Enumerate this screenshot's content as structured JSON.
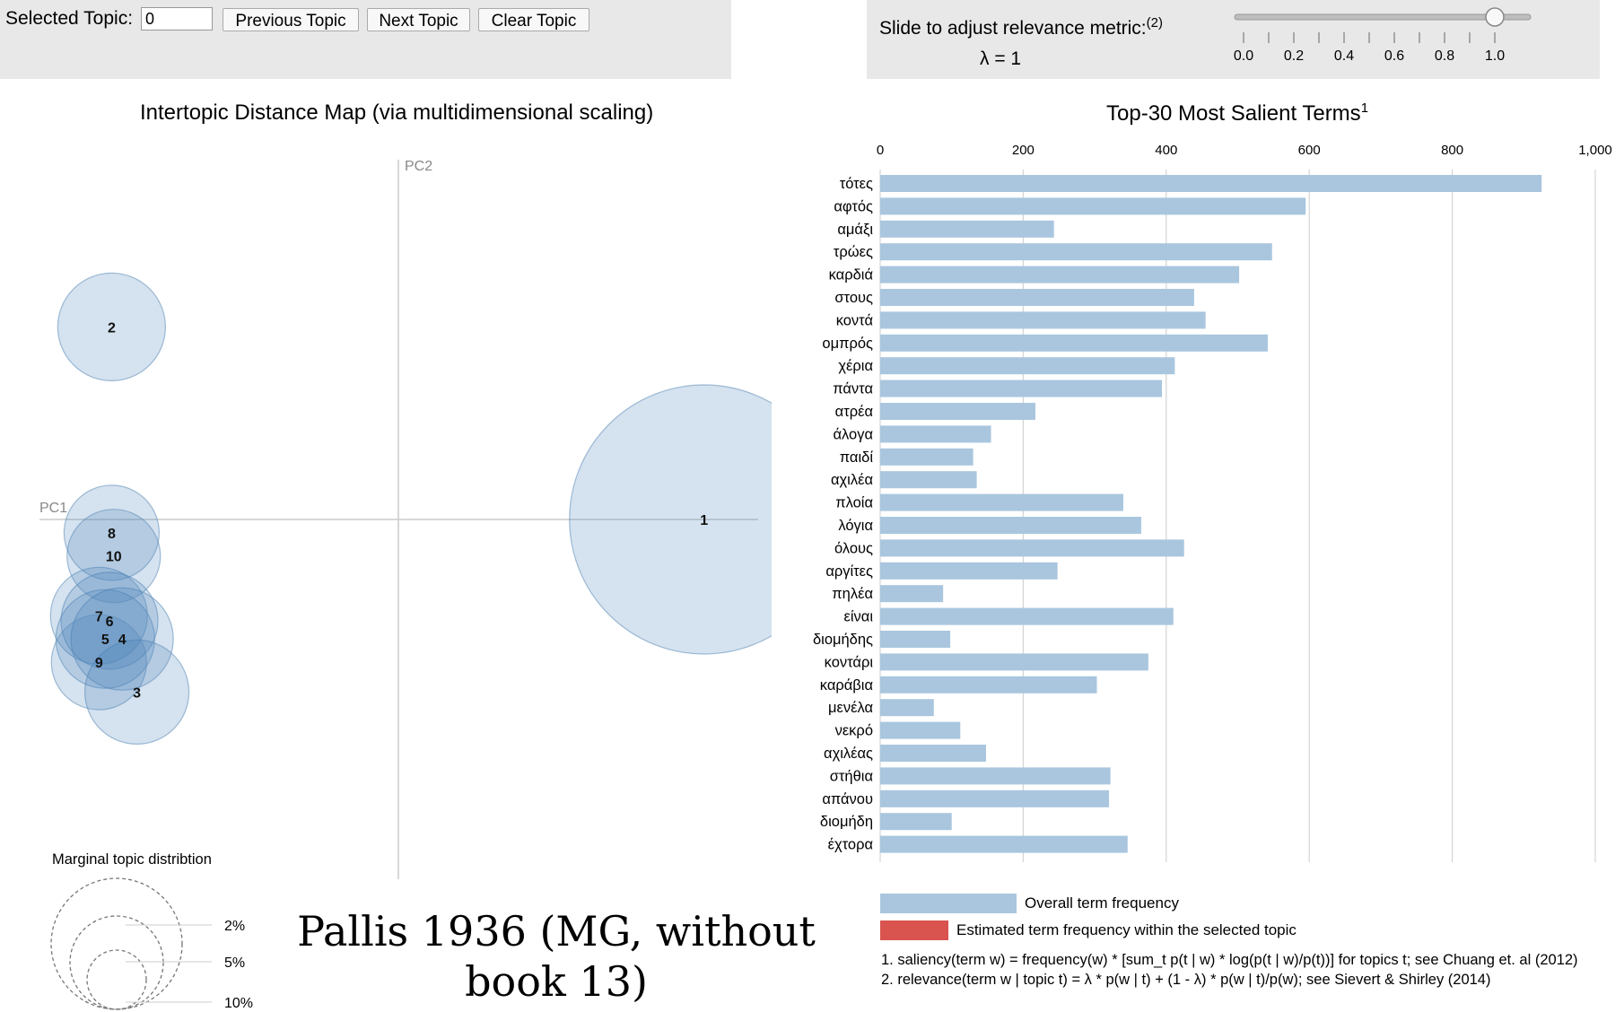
{
  "controls": {
    "selected_topic_label": "Selected Topic:",
    "selected_topic_value": "0",
    "prev_label": "Previous Topic",
    "next_label": "Next Topic",
    "clear_label": "Clear Topic",
    "slider_label": "Slide to adjust relevance metric:",
    "slider_note": "(2)",
    "lambda_text": "λ = 1",
    "lambda_value": 1,
    "slider_ticks": [
      "0.0",
      "0.2",
      "0.4",
      "0.6",
      "0.8",
      "1.0"
    ]
  },
  "left_title": "Intertopic Distance Map (via multidimensional scaling)",
  "right_title": "Top-30 Most Salient Terms",
  "right_title_sup": "1",
  "axes": {
    "pc1": "PC1",
    "pc2": "PC2"
  },
  "topics": [
    {
      "id": "1",
      "x": 0.725,
      "y": 0.0
    },
    {
      "id": "2",
      "x": -0.68,
      "y": 0.58
    },
    {
      "id": "3",
      "x": -0.62,
      "y": -0.52
    },
    {
      "id": "4",
      "x": -0.655,
      "y": -0.36
    },
    {
      "id": "5",
      "x": -0.695,
      "y": -0.36
    },
    {
      "id": "6",
      "x": -0.685,
      "y": -0.305
    },
    {
      "id": "7",
      "x": -0.71,
      "y": -0.29
    },
    {
      "id": "8",
      "x": -0.68,
      "y": -0.04
    },
    {
      "id": "9",
      "x": -0.71,
      "y": -0.43
    },
    {
      "id": "10",
      "x": -0.675,
      "y": -0.11
    }
  ],
  "marginal": {
    "title": "Marginal topic distribtion",
    "labels": [
      "2%",
      "5%",
      "10%"
    ]
  },
  "caption": "Pallis 1936 (MG, without book 13)",
  "chart_data": {
    "type": "bar",
    "orientation": "horizontal",
    "title": "Top-30 Most Salient Terms",
    "categories": [
      "τότες",
      "αφτός",
      "αμάξι",
      "τρώες",
      "καρδιά",
      "στους",
      "κοντά",
      "ομπρός",
      "χέρια",
      "πάντα",
      "ατρέα",
      "άλογα",
      "παιδί",
      "αχιλέα",
      "πλοία",
      "λόγια",
      "όλους",
      "αργίτες",
      "πηλέα",
      "είναι",
      "διομήδης",
      "κοντάρι",
      "καράβια",
      "μενέλα",
      "νεκρό",
      "αχιλέας",
      "στήθια",
      "απάνου",
      "διομήδη",
      "έχτορα"
    ],
    "series": [
      {
        "name": "Overall term frequency",
        "values": [
          925,
          595,
          243,
          548,
          502,
          439,
          455,
          542,
          412,
          394,
          217,
          155,
          130,
          135,
          340,
          365,
          425,
          248,
          88,
          410,
          98,
          375,
          303,
          75,
          112,
          148,
          322,
          320,
          100,
          346
        ]
      }
    ],
    "x_ticks": [
      "0",
      "200",
      "400",
      "600",
      "800",
      "1,000"
    ],
    "xlim": [
      0,
      1000
    ],
    "legend": [
      "Overall term frequency",
      "Estimated term frequency within the selected topic"
    ],
    "colors": {
      "overall": "#a9c6de",
      "estimated": "#d9534f"
    }
  },
  "footnotes": [
    "1. saliency(term w) = frequency(w) * [sum_t p(t | w) * log(p(t | w)/p(t))] for topics t; see Chuang et. al (2012)",
    "2. relevance(term w | topic t) = λ * p(w | t) + (1 - λ) * p(w | t)/p(w); see Sievert & Shirley (2014)"
  ]
}
